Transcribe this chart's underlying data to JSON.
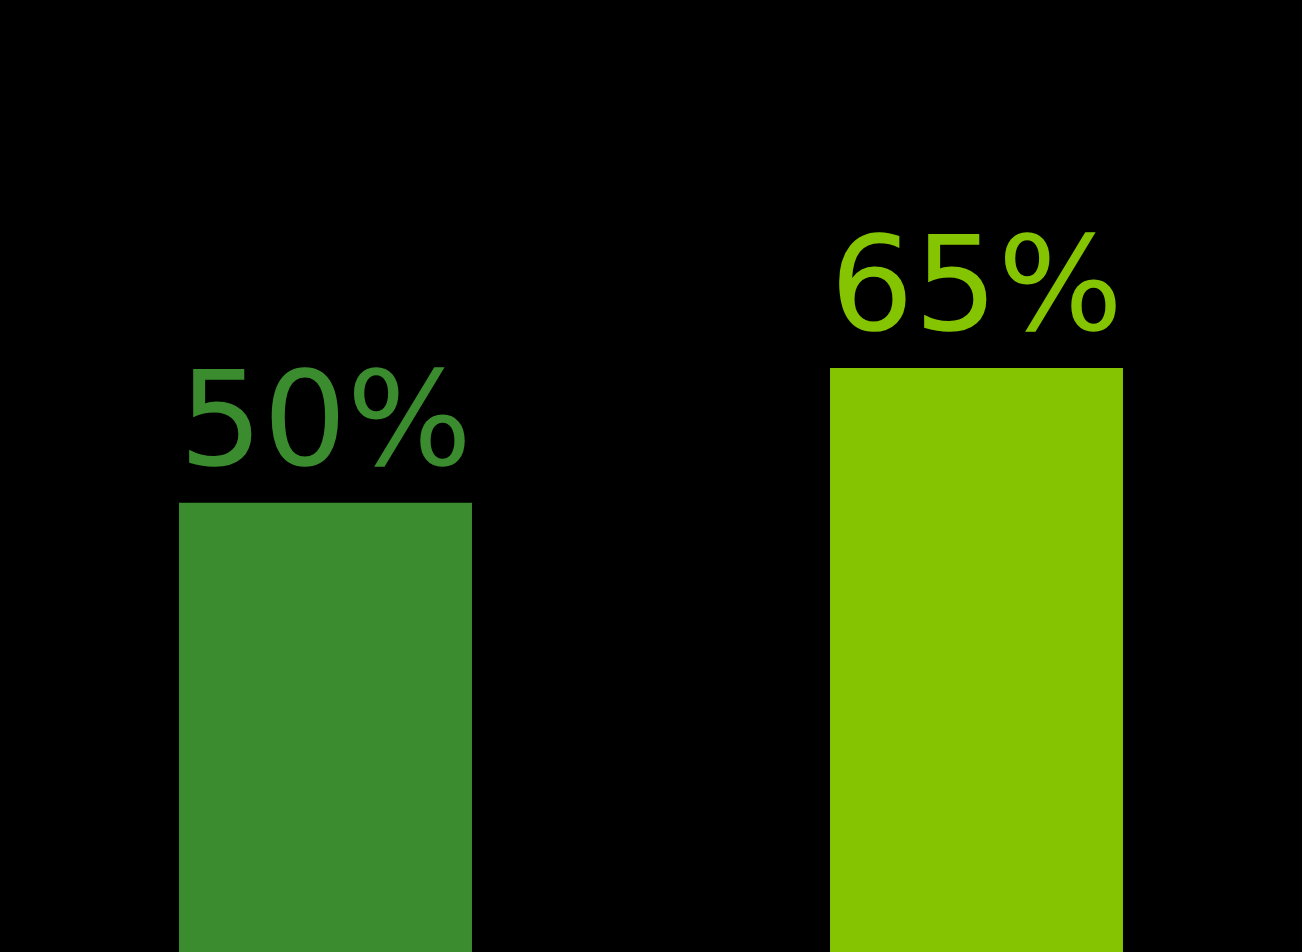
{
  "chart_data": {
    "type": "bar",
    "categories": [
      null,
      null
    ],
    "values": [
      50,
      65
    ],
    "colors": [
      "#3a8c2e",
      "#84c400"
    ],
    "value_labels": [
      "50%",
      "65%"
    ]
  }
}
